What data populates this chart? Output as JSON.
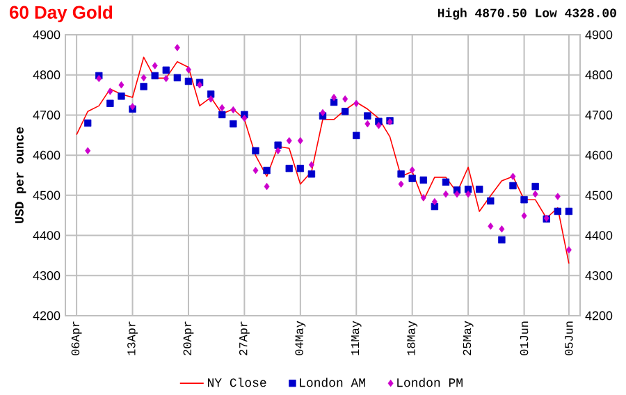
{
  "chart_data": {
    "type": "line",
    "title": "60 Day Gold",
    "subtitle": "High 4870.50 Low 4328.00",
    "ylabel": "USD per ounce",
    "categories": [
      "06Apr",
      null,
      null,
      null,
      null,
      "13Apr",
      null,
      null,
      null,
      null,
      "20Apr",
      null,
      null,
      null,
      null,
      "27Apr",
      null,
      null,
      null,
      null,
      "04May",
      null,
      null,
      null,
      null,
      "11May",
      null,
      null,
      null,
      null,
      "18May",
      null,
      null,
      null,
      null,
      "25May",
      null,
      null,
      null,
      null,
      "01Jun",
      null,
      null,
      null,
      "05Jun"
    ],
    "ylim": [
      4200,
      4900
    ],
    "yticks": [
      4200,
      4300,
      4400,
      4500,
      4600,
      4700,
      4800,
      4900
    ],
    "y2lim": [
      4200,
      4900
    ],
    "y2ticks": [
      4200,
      4300,
      4400,
      4500,
      4600,
      4700,
      4800,
      4900
    ],
    "grid": true,
    "legend": "bottom",
    "series": [
      {
        "name": "NY Close",
        "marker": "none",
        "color": "#ff0000",
        "values": [
          4651,
          4709,
          4723,
          4765,
          4752,
          4744,
          4844,
          4792,
          4792,
          4833,
          4819,
          4723,
          4744,
          4703,
          4715,
          4689,
          4599,
          4547,
          4622,
          4617,
          4528,
          4559,
          4689,
          4689,
          4713,
          4732,
          4715,
          4692,
          4646,
          4547,
          4559,
          4487,
          4545,
          4545,
          4507,
          4570,
          4460,
          4499,
          4536,
          4547,
          4489,
          4489,
          4443,
          4469,
          4330
        ]
      },
      {
        "name": "London AM",
        "type": "scatter",
        "marker": "square",
        "color": "#0000cc",
        "values": [
          null,
          4680,
          4798,
          4729,
          4747,
          4715,
          4771,
          4798,
          4812,
          4793,
          4784,
          4781,
          4752,
          4701,
          4678,
          4701,
          4611,
          4562,
          4625,
          4567,
          4567,
          4553,
          4698,
          4732,
          4709,
          4649,
          4698,
          4684,
          4686,
          4553,
          4542,
          4538,
          4472,
          4533,
          4513,
          4515,
          4515,
          4486,
          4389,
          4524,
          4489,
          4522,
          4441,
          4460,
          4460
        ]
      },
      {
        "name": "London PM",
        "type": "scatter",
        "marker": "diamond",
        "color": "#cc00cc",
        "values": [
          null,
          4611,
          4791,
          4759,
          4775,
          4721,
          4793,
          4823,
          4791,
          4868,
          4813,
          4775,
          4740,
          4718,
          4713,
          4692,
          4562,
          4522,
          4611,
          4636,
          4636,
          4576,
          4706,
          4744,
          4740,
          4729,
          4678,
          4674,
          4683,
          4528,
          4563,
          4494,
          4484,
          4503,
          4503,
          4503,
          null,
          4423,
          4416,
          4547,
          4449,
          4503,
          4443,
          4497,
          4364
        ]
      }
    ]
  }
}
